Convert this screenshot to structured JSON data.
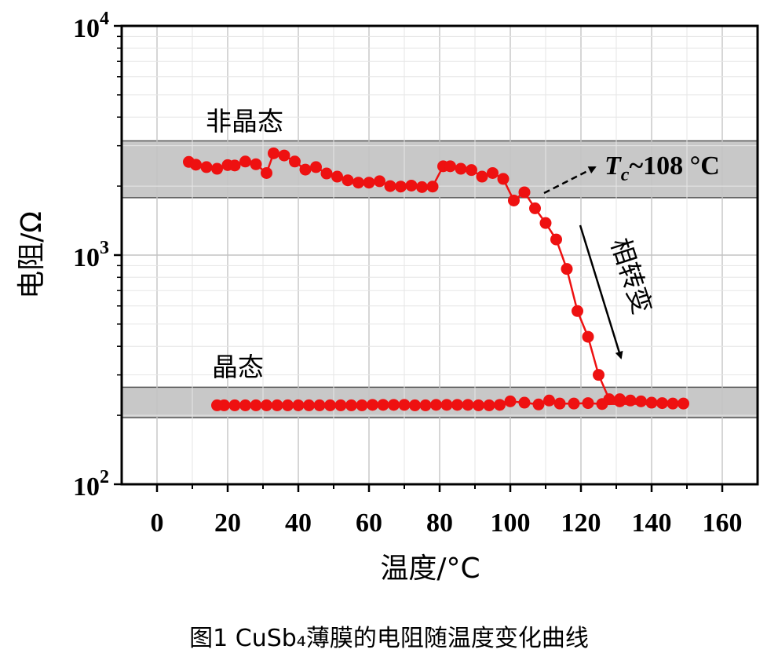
{
  "chart_data": {
    "type": "scatter",
    "xlabel": "温度/°C",
    "ylabel": "电阻/Ω",
    "xlim": [
      -10,
      170
    ],
    "ylim": [
      100,
      10000
    ],
    "yscale": "log",
    "x_ticks": [
      0,
      20,
      40,
      60,
      80,
      100,
      120,
      140,
      160
    ],
    "x_tick_labels": [
      "0",
      "20",
      "40",
      "60",
      "80",
      "100",
      "120",
      "140",
      "160"
    ],
    "y_ticks": [
      100,
      1000,
      10000
    ],
    "y_tick_labels": [
      {
        "base": "10",
        "exp": "2"
      },
      {
        "base": "10",
        "exp": "3"
      },
      {
        "base": "10",
        "exp": "4"
      }
    ],
    "grid": true,
    "marker_color": "#ee1111",
    "bands": [
      {
        "label": "非晶态",
        "ymin": 1780,
        "ymax": 3150,
        "color": "#c8c8c8"
      },
      {
        "label": "晶态",
        "ymin": 195,
        "ymax": 265,
        "color": "#c8c8c8"
      }
    ],
    "series": [
      {
        "x": [
          9,
          11,
          14,
          17,
          20,
          22,
          25,
          28,
          31,
          33,
          36,
          39,
          42,
          45,
          48,
          51,
          54,
          57,
          60,
          63,
          66,
          69,
          72,
          75,
          78,
          81,
          83,
          86,
          89,
          92,
          95,
          98,
          101,
          104,
          107,
          110,
          113,
          116,
          119,
          122,
          125,
          128,
          131
        ],
        "y": [
          2550,
          2480,
          2420,
          2380,
          2470,
          2460,
          2560,
          2490,
          2280,
          2780,
          2720,
          2560,
          2360,
          2420,
          2270,
          2200,
          2120,
          2070,
          2070,
          2100,
          2000,
          1990,
          2010,
          1980,
          1990,
          2440,
          2440,
          2380,
          2350,
          2200,
          2280,
          2150,
          1730,
          1880,
          1600,
          1380,
          1170,
          870,
          570,
          440,
          300,
          235,
          235
        ]
      },
      {
        "x": [
          131,
          134,
          137,
          140,
          143,
          146,
          149,
          126,
          122,
          118,
          114,
          111,
          108,
          104,
          100,
          97,
          94,
          91,
          88,
          85,
          82,
          79,
          76,
          73,
          70,
          67,
          64,
          61,
          58,
          55,
          52,
          49,
          46,
          43,
          40,
          37,
          34,
          31,
          28,
          25,
          22,
          19,
          17
        ],
        "y": [
          230,
          232,
          230,
          227,
          226,
          225,
          225,
          224,
          226,
          225,
          225,
          232,
          223,
          227,
          230,
          222,
          221,
          221,
          222,
          222,
          222,
          222,
          221,
          221,
          222,
          222,
          222,
          222,
          221,
          221,
          221,
          221,
          221,
          221,
          221,
          221,
          221,
          221,
          221,
          221,
          221,
          221,
          221
        ]
      }
    ],
    "annotations": {
      "amorphous": "非晶态",
      "crystalline": "晶态",
      "tc_symbol": "T",
      "tc_sub": "c",
      "tc_value": "~108 °C",
      "transition": "相转变"
    }
  },
  "caption": "图1  CuSb₄薄膜的电阻随温度变化曲线"
}
